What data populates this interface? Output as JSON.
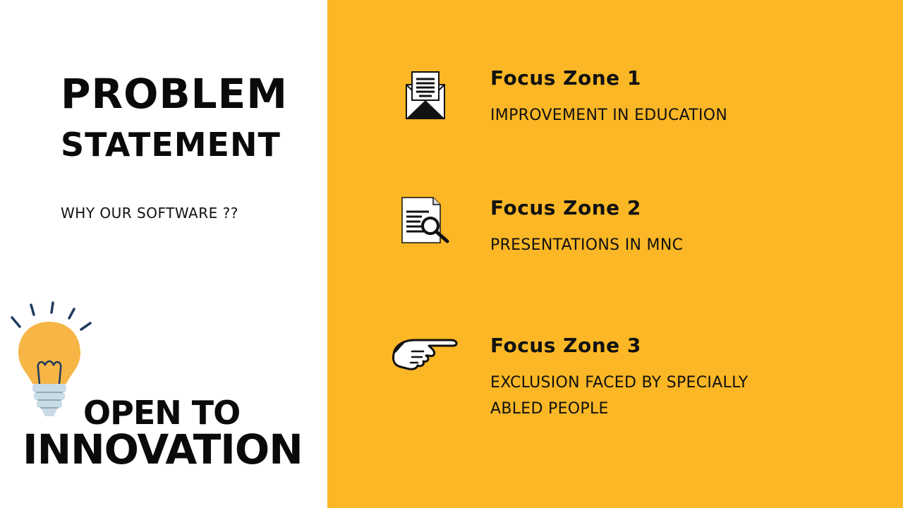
{
  "slide": {
    "title_line1": "PROBLEM",
    "title_line2": "STATEMENT",
    "subtitle": "WHY OUR SOFTWARE ??",
    "tagline_line1": "OPEN TO",
    "tagline_line2": "INNOVATION",
    "colors": {
      "accent_panel": "#FBB725",
      "bulb": "#F7B545",
      "bulb_base": "#C9DCE6",
      "ray": "#1F3A5F",
      "text": "#111111"
    }
  },
  "focus_zones": [
    {
      "title": "Focus Zone 1",
      "description": "IMPROVEMENT IN EDUCATION",
      "icon": "open-envelope-icon"
    },
    {
      "title": "Focus Zone 2",
      "description": "PRESENTATIONS IN MNC",
      "icon": "document-search-icon"
    },
    {
      "title": "Focus Zone 3",
      "description": "EXCLUSION FACED BY SPECIALLY ABLED PEOPLE",
      "icon": "pointing-hand-icon"
    }
  ]
}
